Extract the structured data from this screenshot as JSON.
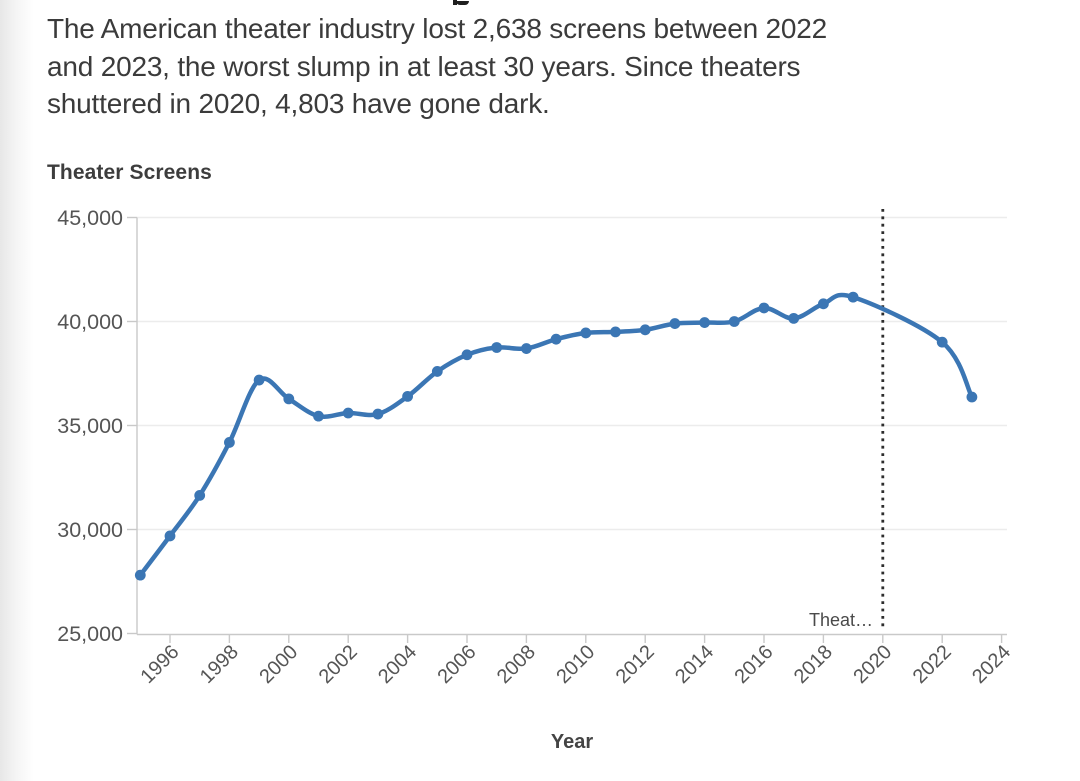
{
  "page": {
    "intro_lines": [
      "The American theater industry lost 2,638 screens between 2022",
      "and 2023, the worst slump in at least 30 years. Since theaters",
      "shuttered in 2020, 4,803 have gone dark."
    ]
  },
  "chart_data": {
    "type": "line",
    "title": "Theater Screens",
    "xlabel": "Year",
    "ylabel": "",
    "legend": "none",
    "grid": "horizontal",
    "line_smoothing": true,
    "xlim": [
      1994.9,
      2024.35
    ],
    "ylim": [
      25000,
      45000
    ],
    "x_ticks": [
      1996,
      1998,
      2000,
      2002,
      2004,
      2006,
      2008,
      2010,
      2012,
      2014,
      2016,
      2018,
      2020,
      2022,
      2024
    ],
    "x_tick_labels": [
      "1996",
      "1998",
      "2000",
      "2002",
      "2004",
      "2006",
      "2008",
      "2010",
      "2012",
      "2014",
      "2016",
      "2018",
      "2020",
      "2022",
      "2024"
    ],
    "y_ticks": [
      25000,
      30000,
      35000,
      40000,
      45000
    ],
    "y_tick_labels": [
      "25,000",
      "30,000",
      "35,000",
      "40,000",
      "45,000"
    ],
    "reference_line": {
      "x": 2020,
      "style": "dotted",
      "label": "Theat…"
    },
    "series": [
      {
        "name": "Theater Screens",
        "points": [
          [
            1995,
            27805
          ],
          [
            1996,
            29690
          ],
          [
            1997,
            31640
          ],
          [
            1998,
            34186
          ],
          [
            1999,
            37185
          ],
          [
            2000,
            36280
          ],
          [
            2001,
            35450
          ],
          [
            2002,
            35600
          ],
          [
            2003,
            35550
          ],
          [
            2004,
            36400
          ],
          [
            2005,
            37600
          ],
          [
            2006,
            38400
          ],
          [
            2007,
            38750
          ],
          [
            2008,
            38700
          ],
          [
            2009,
            39150
          ],
          [
            2010,
            39450
          ],
          [
            2011,
            39500
          ],
          [
            2012,
            39600
          ],
          [
            2013,
            39900
          ],
          [
            2014,
            39950
          ],
          [
            2015,
            40000
          ],
          [
            2016,
            40650
          ],
          [
            2017,
            40150
          ],
          [
            2018,
            40850
          ],
          [
            2019,
            41172
          ],
          [
            2020,
            null
          ],
          [
            2021,
            null
          ],
          [
            2022,
            39007
          ],
          [
            2023,
            36369
          ]
        ]
      }
    ],
    "colors": {
      "line": "#3b76b4",
      "grid": "#ececec",
      "axis": "#c9c9c9",
      "tick_text": "#555555",
      "axis_title": "#444444",
      "chart_title": "#3d3d3d",
      "annotation": "#4a4a4a",
      "reference_line": "#2d2d2d",
      "body_text": "#3b3b3b"
    }
  }
}
